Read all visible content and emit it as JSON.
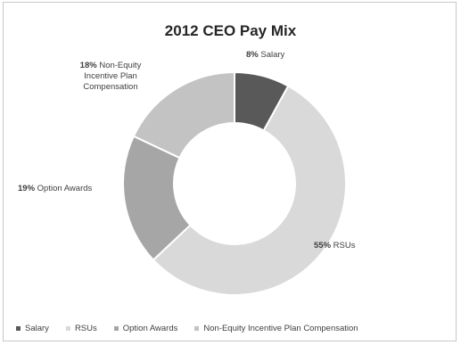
{
  "chart_data": {
    "type": "pie",
    "donut": true,
    "title": "2012 CEO Pay Mix",
    "categories": [
      "Salary",
      "RSUs",
      "Option Awards",
      "Non-Equity Incentive Plan Compensation"
    ],
    "values": [
      8,
      55,
      19,
      18
    ],
    "unit": "%",
    "data_labels": [
      {
        "pct": "8%",
        "name": "Salary"
      },
      {
        "pct": "55%",
        "name": "RSUs"
      },
      {
        "pct": "19%",
        "name": "Option Awards"
      },
      {
        "pct": "18%",
        "name": "Non-Equity Incentive Plan Compensation"
      }
    ],
    "colors": [
      "#595959",
      "#d9d9d9",
      "#a6a6a6",
      "#c3c3c3"
    ],
    "legend_placement": "bottom",
    "legend": [
      "Salary",
      "RSUs",
      "Option Awards",
      "Non-Equity Incentive Plan Compensation"
    ]
  }
}
